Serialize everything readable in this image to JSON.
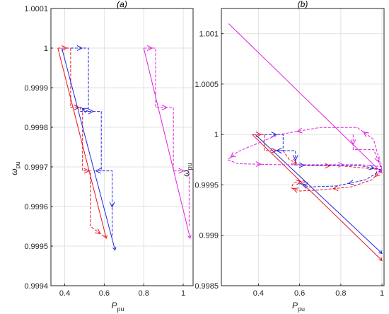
{
  "chart_data": [
    {
      "type": "line",
      "title": "(a)",
      "xlabel": {
        "main": "P",
        "sub": "pu"
      },
      "ylabel": {
        "main": "ω",
        "sub": "pu"
      },
      "xlim": [
        0.33,
        1.05
      ],
      "ylim": [
        0.9994,
        1.0001
      ],
      "xticks": [
        0.4,
        0.6,
        0.8,
        1
      ],
      "xtick_labels": [
        "0.4",
        "0.6",
        "0.8",
        "1"
      ],
      "yticks": [
        0.9994,
        0.9995,
        0.9996,
        0.9997,
        0.9998,
        0.9999,
        1,
        1.0001
      ],
      "ytick_labels": [
        "0.9994",
        "0.9995",
        "0.9996",
        "0.9997",
        "0.9998",
        "0.9999",
        "1",
        "1.0001"
      ],
      "grid": true,
      "series": [
        {
          "color": "#e8141e",
          "dash": false,
          "points": [
            [
              0.365,
              1.0
            ],
            [
              0.61,
              0.99952
            ]
          ]
        },
        {
          "color": "#e8141e",
          "dash": true,
          "points": [
            [
              0.365,
              1.0
            ],
            [
              0.43,
              1.0
            ],
            [
              0.43,
              0.99985
            ],
            [
              0.49,
              0.99985
            ],
            [
              0.49,
              0.99969
            ],
            [
              0.53,
              0.99969
            ],
            [
              0.53,
              0.99955
            ],
            [
              0.61,
              0.99952
            ]
          ]
        },
        {
          "color": "#2026e0",
          "dash": false,
          "points": [
            [
              0.385,
              1.0
            ],
            [
              0.655,
              0.99949
            ]
          ]
        },
        {
          "color": "#2026e0",
          "dash": true,
          "points": [
            [
              0.43,
              1.0
            ],
            [
              0.52,
              1.0
            ],
            [
              0.52,
              0.99984
            ],
            [
              0.48,
              0.99985
            ],
            [
              0.48,
              0.99984
            ],
            [
              0.585,
              0.99984
            ],
            [
              0.585,
              0.99969
            ],
            [
              0.555,
              0.99969
            ],
            [
              0.64,
              0.99969
            ],
            [
              0.64,
              0.99952
            ]
          ]
        },
        {
          "color": "#e020e0",
          "dash": false,
          "points": [
            [
              0.8,
              1.0
            ],
            [
              1.035,
              0.99952
            ]
          ]
        },
        {
          "color": "#e020e0",
          "dash": true,
          "points": [
            [
              0.8,
              1.0
            ],
            [
              0.86,
              1.0
            ],
            [
              0.86,
              0.99985
            ],
            [
              0.95,
              0.99985
            ],
            [
              0.95,
              0.99969
            ],
            [
              1.03,
              0.99969
            ],
            [
              1.03,
              0.99955
            ]
          ]
        }
      ]
    },
    {
      "type": "line",
      "title": "(b)",
      "xlabel": {
        "main": "P",
        "sub": "pu"
      },
      "ylabel": {
        "main": "ω",
        "sub": "pu"
      },
      "xlim": [
        0.22,
        1.01
      ],
      "ylim": [
        0.9985,
        1.00125
      ],
      "xticks": [
        0.4,
        0.6,
        0.8,
        1
      ],
      "xtick_labels": [
        "0.4",
        "0.6",
        "0.8",
        "1"
      ],
      "yticks": [
        0.9985,
        0.999,
        0.9995,
        1,
        1.0005,
        1.001
      ],
      "ytick_labels": [
        "0.9985",
        "0.999",
        "0.9995",
        "1",
        "1.0005",
        "1.001"
      ],
      "grid": true,
      "series": [
        {
          "color": "#e8141e",
          "dash": false,
          "points": [
            [
              0.37,
              1.0
            ],
            [
              1.0,
              0.99875
            ]
          ]
        },
        {
          "color": "#e8141e",
          "dash": true,
          "points": [
            [
              0.37,
              1.0
            ],
            [
              0.43,
              1.0
            ],
            [
              0.43,
              0.99984
            ],
            [
              0.52,
              0.99984
            ],
            [
              0.55,
              0.99975
            ],
            [
              0.6,
              0.9997
            ],
            [
              0.67,
              0.99969
            ],
            [
              0.8,
              0.99969
            ],
            [
              1.0,
              0.99965
            ],
            [
              0.95,
              0.99955
            ],
            [
              0.85,
              0.99948
            ],
            [
              0.7,
              0.99945
            ],
            [
              0.6,
              0.99944
            ],
            [
              0.56,
              0.99947
            ],
            [
              0.57,
              0.99952
            ],
            [
              0.62,
              0.99954
            ],
            [
              0.64,
              0.99952
            ]
          ]
        },
        {
          "color": "#2026e0",
          "dash": false,
          "points": [
            [
              0.385,
              1.0
            ],
            [
              1.0,
              0.99882
            ]
          ]
        },
        {
          "color": "#2026e0",
          "dash": true,
          "points": [
            [
              0.43,
              1.0
            ],
            [
              0.52,
              1.0
            ],
            [
              0.52,
              0.99984
            ],
            [
              0.48,
              0.99984
            ],
            [
              0.58,
              0.99984
            ],
            [
              0.58,
              0.9997
            ],
            [
              0.56,
              0.9997
            ],
            [
              0.66,
              0.99969
            ],
            [
              0.9,
              0.99969
            ],
            [
              1.0,
              0.99965
            ],
            [
              0.92,
              0.99955
            ],
            [
              0.78,
              0.99949
            ],
            [
              0.65,
              0.99948
            ],
            [
              0.6,
              0.99951
            ],
            [
              0.63,
              0.99953
            ]
          ]
        },
        {
          "color": "#e020e0",
          "dash": false,
          "points": [
            [
              0.255,
              1.0011
            ],
            [
              1.0,
              0.99962
            ]
          ]
        },
        {
          "color": "#e020e0",
          "dash": true,
          "points": [
            [
              0.86,
              1.0
            ],
            [
              0.86,
              0.99985
            ],
            [
              0.96,
              0.99985
            ],
            [
              1.0,
              0.99965
            ],
            [
              0.96,
              0.99995
            ],
            [
              0.88,
              1.00007
            ],
            [
              0.7,
              1.00007
            ],
            [
              0.5,
              1.0
            ],
            [
              0.3,
              0.99983
            ],
            [
              0.25,
              0.99975
            ],
            [
              0.3,
              0.99971
            ],
            [
              0.5,
              0.9997
            ],
            [
              0.7,
              0.9997
            ],
            [
              0.9,
              0.9997
            ],
            [
              1.0,
              0.99968
            ]
          ]
        }
      ]
    }
  ]
}
